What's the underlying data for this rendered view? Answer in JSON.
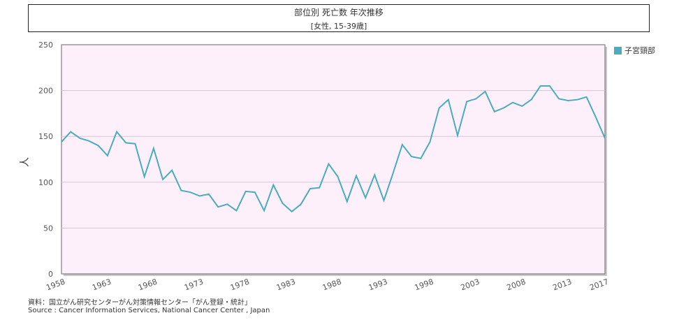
{
  "title": "部位別 死亡数 年次推移",
  "subtitle": "[女性, 15-39歳]",
  "source_ja": "資料：国立がん研究センターがん対策情報センター「がん登録・統計」",
  "source_en": "Source : Cancer Information Services, National Cancer Center , Japan",
  "colors": {
    "plot_bg": "#fdf0fb",
    "line": "#4aacbc",
    "grid": "#d8c6d4",
    "axis": "#666666"
  },
  "chart_data": {
    "type": "line",
    "ylabel": "人",
    "ylim": [
      0,
      250
    ],
    "yticks": [
      0,
      50,
      100,
      150,
      200,
      250
    ],
    "xlim": [
      1958,
      2017
    ],
    "xticks": [
      1958,
      1963,
      1968,
      1973,
      1978,
      1983,
      1988,
      1993,
      1998,
      2003,
      2008,
      2013,
      2017
    ],
    "legend": "right",
    "series": [
      {
        "name": "子宮頸部",
        "x": [
          1958,
          1959,
          1960,
          1961,
          1962,
          1963,
          1964,
          1965,
          1966,
          1967,
          1968,
          1969,
          1970,
          1971,
          1972,
          1973,
          1974,
          1975,
          1976,
          1977,
          1978,
          1979,
          1980,
          1981,
          1982,
          1983,
          1984,
          1985,
          1986,
          1987,
          1988,
          1989,
          1990,
          1991,
          1992,
          1993,
          1994,
          1995,
          1996,
          1997,
          1998,
          1999,
          2000,
          2001,
          2002,
          2003,
          2004,
          2005,
          2006,
          2007,
          2008,
          2009,
          2010,
          2011,
          2012,
          2013,
          2014,
          2015,
          2016,
          2017
        ],
        "values": [
          144,
          155,
          148,
          145,
          140,
          129,
          155,
          143,
          142,
          106,
          137,
          103,
          113,
          91,
          89,
          85,
          87,
          73,
          76,
          69,
          90,
          89,
          69,
          97,
          77,
          68,
          76,
          93,
          94,
          120,
          106,
          79,
          107,
          83,
          108,
          80,
          110,
          141,
          128,
          126,
          144,
          181,
          190,
          151,
          188,
          191,
          199,
          177,
          181,
          187,
          183,
          190,
          205,
          205,
          191,
          189,
          190,
          193,
          171,
          148
        ]
      }
    ]
  }
}
